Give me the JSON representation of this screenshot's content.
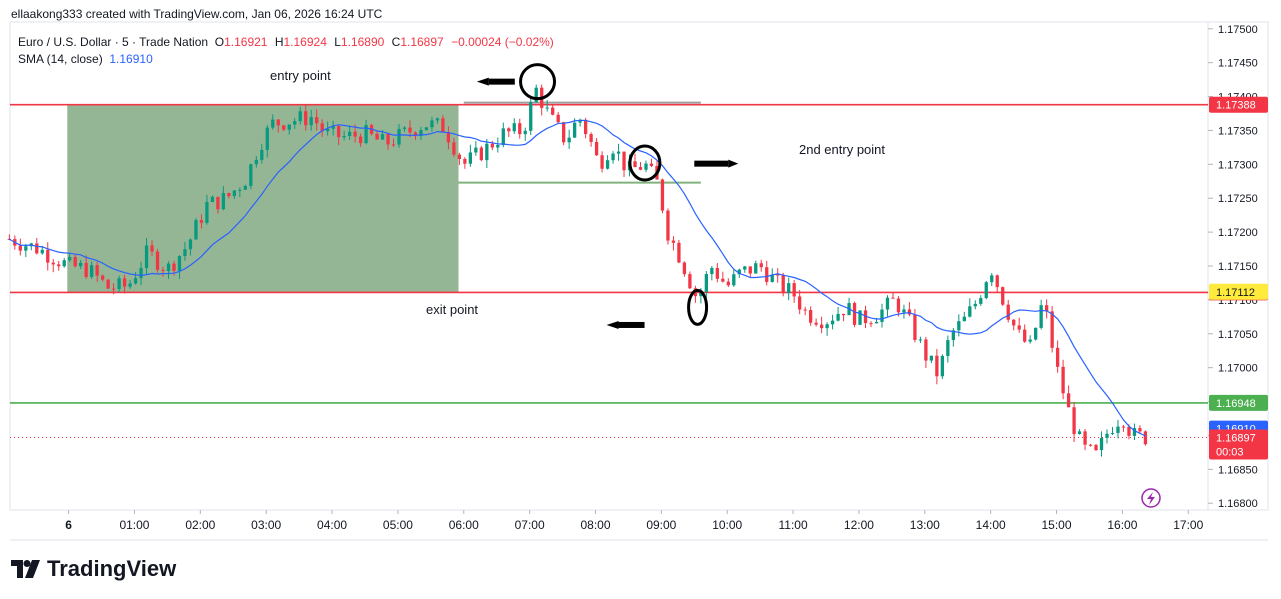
{
  "credit": "ellaakong333 created with TradingView.com, Jan 06, 2026 16:24 UTC",
  "legend": {
    "symbol": "Euro / U.S. Dollar · 5 · Trade Nation",
    "o_label": "O",
    "o_value": "1.16921",
    "h_label": "H",
    "h_value": "1.16924",
    "l_label": "L",
    "l_value": "1.16890",
    "c_label": "C",
    "c_value": "1.16897",
    "change": "−0.00024 (−0.02%)",
    "sma_label": "SMA (14, close)",
    "sma_value": "1.16910"
  },
  "annotations": {
    "entry": "entry point",
    "second_entry": "2nd entry point",
    "exit": "exit point"
  },
  "logo_text": "TradingView",
  "colors": {
    "up": "#089981",
    "down": "#f23645",
    "sma": "#2962ff",
    "zone": "#8fb28f",
    "hline_red": "#f23645",
    "hline_green": "#4caf50",
    "price_tag_blue": "#2962ff",
    "price_tag_yellow": "#ffeb3b"
  },
  "chart_data": {
    "type": "candlestick",
    "title": "Euro / U.S. Dollar · 5 · Trade Nation",
    "interval": "5m",
    "x_ticks": [
      "6",
      "01:00",
      "02:00",
      "03:00",
      "04:00",
      "05:00",
      "06:00",
      "07:00",
      "08:00",
      "09:00",
      "10:00",
      "11:00",
      "12:00",
      "13:00",
      "14:00",
      "15:00",
      "16:00",
      "17:00"
    ],
    "y_ticks": [
      "1.17500",
      "1.17450",
      "1.17400",
      "1.17350",
      "1.17300",
      "1.17250",
      "1.17200",
      "1.17150",
      "1.17100",
      "1.17050",
      "1.17000",
      "1.16950",
      "1.16900",
      "1.16850",
      "1.16800"
    ],
    "ylim": [
      1.1679,
      1.1751
    ],
    "xlim_hours": [
      -0.89,
      17.3
    ],
    "horizontal_lines": [
      {
        "price": 1.17388,
        "color": "red",
        "label": "1.17388"
      },
      {
        "price": 1.17111,
        "color": "red",
        "label": "1.17111"
      },
      {
        "price": 1.16948,
        "color": "green",
        "label": "1.16948"
      }
    ],
    "price_labels": [
      {
        "price": 1.17112,
        "label": "1.17112",
        "style": "yellow"
      },
      {
        "price": 1.1691,
        "label": "1.16910",
        "style": "blue"
      },
      {
        "price": 1.16897,
        "label": "1.16897",
        "sub": "00:03",
        "style": "red"
      }
    ],
    "last_price": 1.16897,
    "zone": {
      "t0": -0.02,
      "t1": 5.92,
      "p_top": 1.17388,
      "p_bottom": 1.17111
    },
    "short_lines": [
      {
        "t0": 6.0,
        "t1": 9.6,
        "price": 1.17391,
        "color": "gray"
      },
      {
        "t0": 5.92,
        "t1": 9.6,
        "price": 1.17273,
        "color": "green"
      }
    ],
    "markers": [
      {
        "type": "ellipse",
        "t": 7.12,
        "price": 1.17422
      },
      {
        "type": "ellipse",
        "t": 8.75,
        "price": 1.17302
      },
      {
        "type": "ellipse",
        "t": 9.55,
        "price": 1.17089
      }
    ],
    "arrows": [
      {
        "t": 6.38,
        "price": 1.17422,
        "dir": "left"
      },
      {
        "t": 9.5,
        "price": 1.17301,
        "dir": "right"
      },
      {
        "t": 8.35,
        "price": 1.17063,
        "dir": "left"
      }
    ],
    "close_anchors": [
      [
        -0.9,
        1.1719
      ],
      [
        -0.45,
        1.17175
      ],
      [
        0.0,
        1.1715
      ],
      [
        0.3,
        1.17145
      ],
      [
        0.6,
        1.17118
      ],
      [
        0.9,
        1.1712
      ],
      [
        1.2,
        1.1717
      ],
      [
        1.5,
        1.17145
      ],
      [
        1.8,
        1.1718
      ],
      [
        2.1,
        1.1724
      ],
      [
        2.4,
        1.1725
      ],
      [
        2.7,
        1.1728
      ],
      [
        2.9,
        1.1733
      ],
      [
        3.1,
        1.1736
      ],
      [
        3.4,
        1.17365
      ],
      [
        3.7,
        1.1737
      ],
      [
        3.9,
        1.17345
      ],
      [
        4.2,
        1.1734
      ],
      [
        4.5,
        1.17345
      ],
      [
        4.8,
        1.1733
      ],
      [
        5.1,
        1.17345
      ],
      [
        5.4,
        1.1736
      ],
      [
        5.7,
        1.17355
      ],
      [
        6.0,
        1.173
      ],
      [
        6.3,
        1.1732
      ],
      [
        6.6,
        1.17345
      ],
      [
        6.9,
        1.1735
      ],
      [
        7.1,
        1.1741
      ],
      [
        7.3,
        1.1737
      ],
      [
        7.55,
        1.17335
      ],
      [
        7.75,
        1.1737
      ],
      [
        7.9,
        1.1734
      ],
      [
        8.05,
        1.173
      ],
      [
        8.25,
        1.1733
      ],
      [
        8.5,
        1.1729
      ],
      [
        8.75,
        1.173
      ],
      [
        8.95,
        1.1727
      ],
      [
        9.1,
        1.172
      ],
      [
        9.3,
        1.1716
      ],
      [
        9.55,
        1.171
      ],
      [
        9.75,
        1.1715
      ],
      [
        10.0,
        1.1712
      ],
      [
        10.2,
        1.1714
      ],
      [
        10.5,
        1.1715
      ],
      [
        10.8,
        1.1712
      ],
      [
        11.0,
        1.1711
      ],
      [
        11.2,
        1.1708
      ],
      [
        11.5,
        1.1707
      ],
      [
        11.8,
        1.1709
      ],
      [
        12.0,
        1.1707
      ],
      [
        12.3,
        1.1708
      ],
      [
        12.55,
        1.171
      ],
      [
        12.8,
        1.1706
      ],
      [
        13.0,
        1.1702
      ],
      [
        13.2,
        1.1699
      ],
      [
        13.4,
        1.1705
      ],
      [
        13.6,
        1.1707
      ],
      [
        13.8,
        1.171
      ],
      [
        14.0,
        1.1715
      ],
      [
        14.15,
        1.1711
      ],
      [
        14.4,
        1.1705
      ],
      [
        14.6,
        1.1703
      ],
      [
        14.8,
        1.171
      ],
      [
        15.0,
        1.17
      ],
      [
        15.2,
        1.1693
      ],
      [
        15.4,
        1.1688
      ],
      [
        15.6,
        1.1687
      ],
      [
        15.8,
        1.1691
      ],
      [
        16.0,
        1.1693
      ],
      [
        16.15,
        1.169
      ],
      [
        16.4,
        1.16897
      ]
    ],
    "sma_period": 14
  }
}
